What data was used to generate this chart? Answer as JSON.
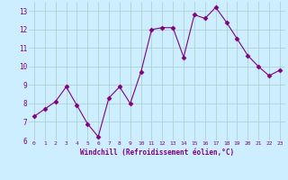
{
  "x": [
    0,
    1,
    2,
    3,
    4,
    5,
    6,
    7,
    8,
    9,
    10,
    11,
    12,
    13,
    14,
    15,
    16,
    17,
    18,
    19,
    20,
    21,
    22,
    23
  ],
  "y": [
    7.3,
    7.7,
    8.1,
    8.9,
    7.9,
    6.9,
    6.2,
    8.3,
    8.9,
    8.0,
    9.7,
    12.0,
    12.1,
    12.1,
    10.5,
    12.8,
    12.6,
    13.2,
    12.4,
    11.5,
    10.6,
    10.0,
    9.5,
    9.8
  ],
  "line_color": "#800080",
  "marker": "D",
  "marker_size": 2.5,
  "bg_color": "#cceeff",
  "grid_color": "#aacccc",
  "xlabel": "Windchill (Refroidissement éolien,°C)",
  "xlabel_color": "#800080",
  "tick_color": "#800080",
  "ylim": [
    6,
    13.5
  ],
  "xlim": [
    -0.5,
    23.5
  ],
  "yticks": [
    6,
    7,
    8,
    9,
    10,
    11,
    12,
    13
  ],
  "xticks": [
    0,
    1,
    2,
    3,
    4,
    5,
    6,
    7,
    8,
    9,
    10,
    11,
    12,
    13,
    14,
    15,
    16,
    17,
    18,
    19,
    20,
    21,
    22,
    23
  ],
  "figsize": [
    3.2,
    2.0
  ],
  "dpi": 100
}
